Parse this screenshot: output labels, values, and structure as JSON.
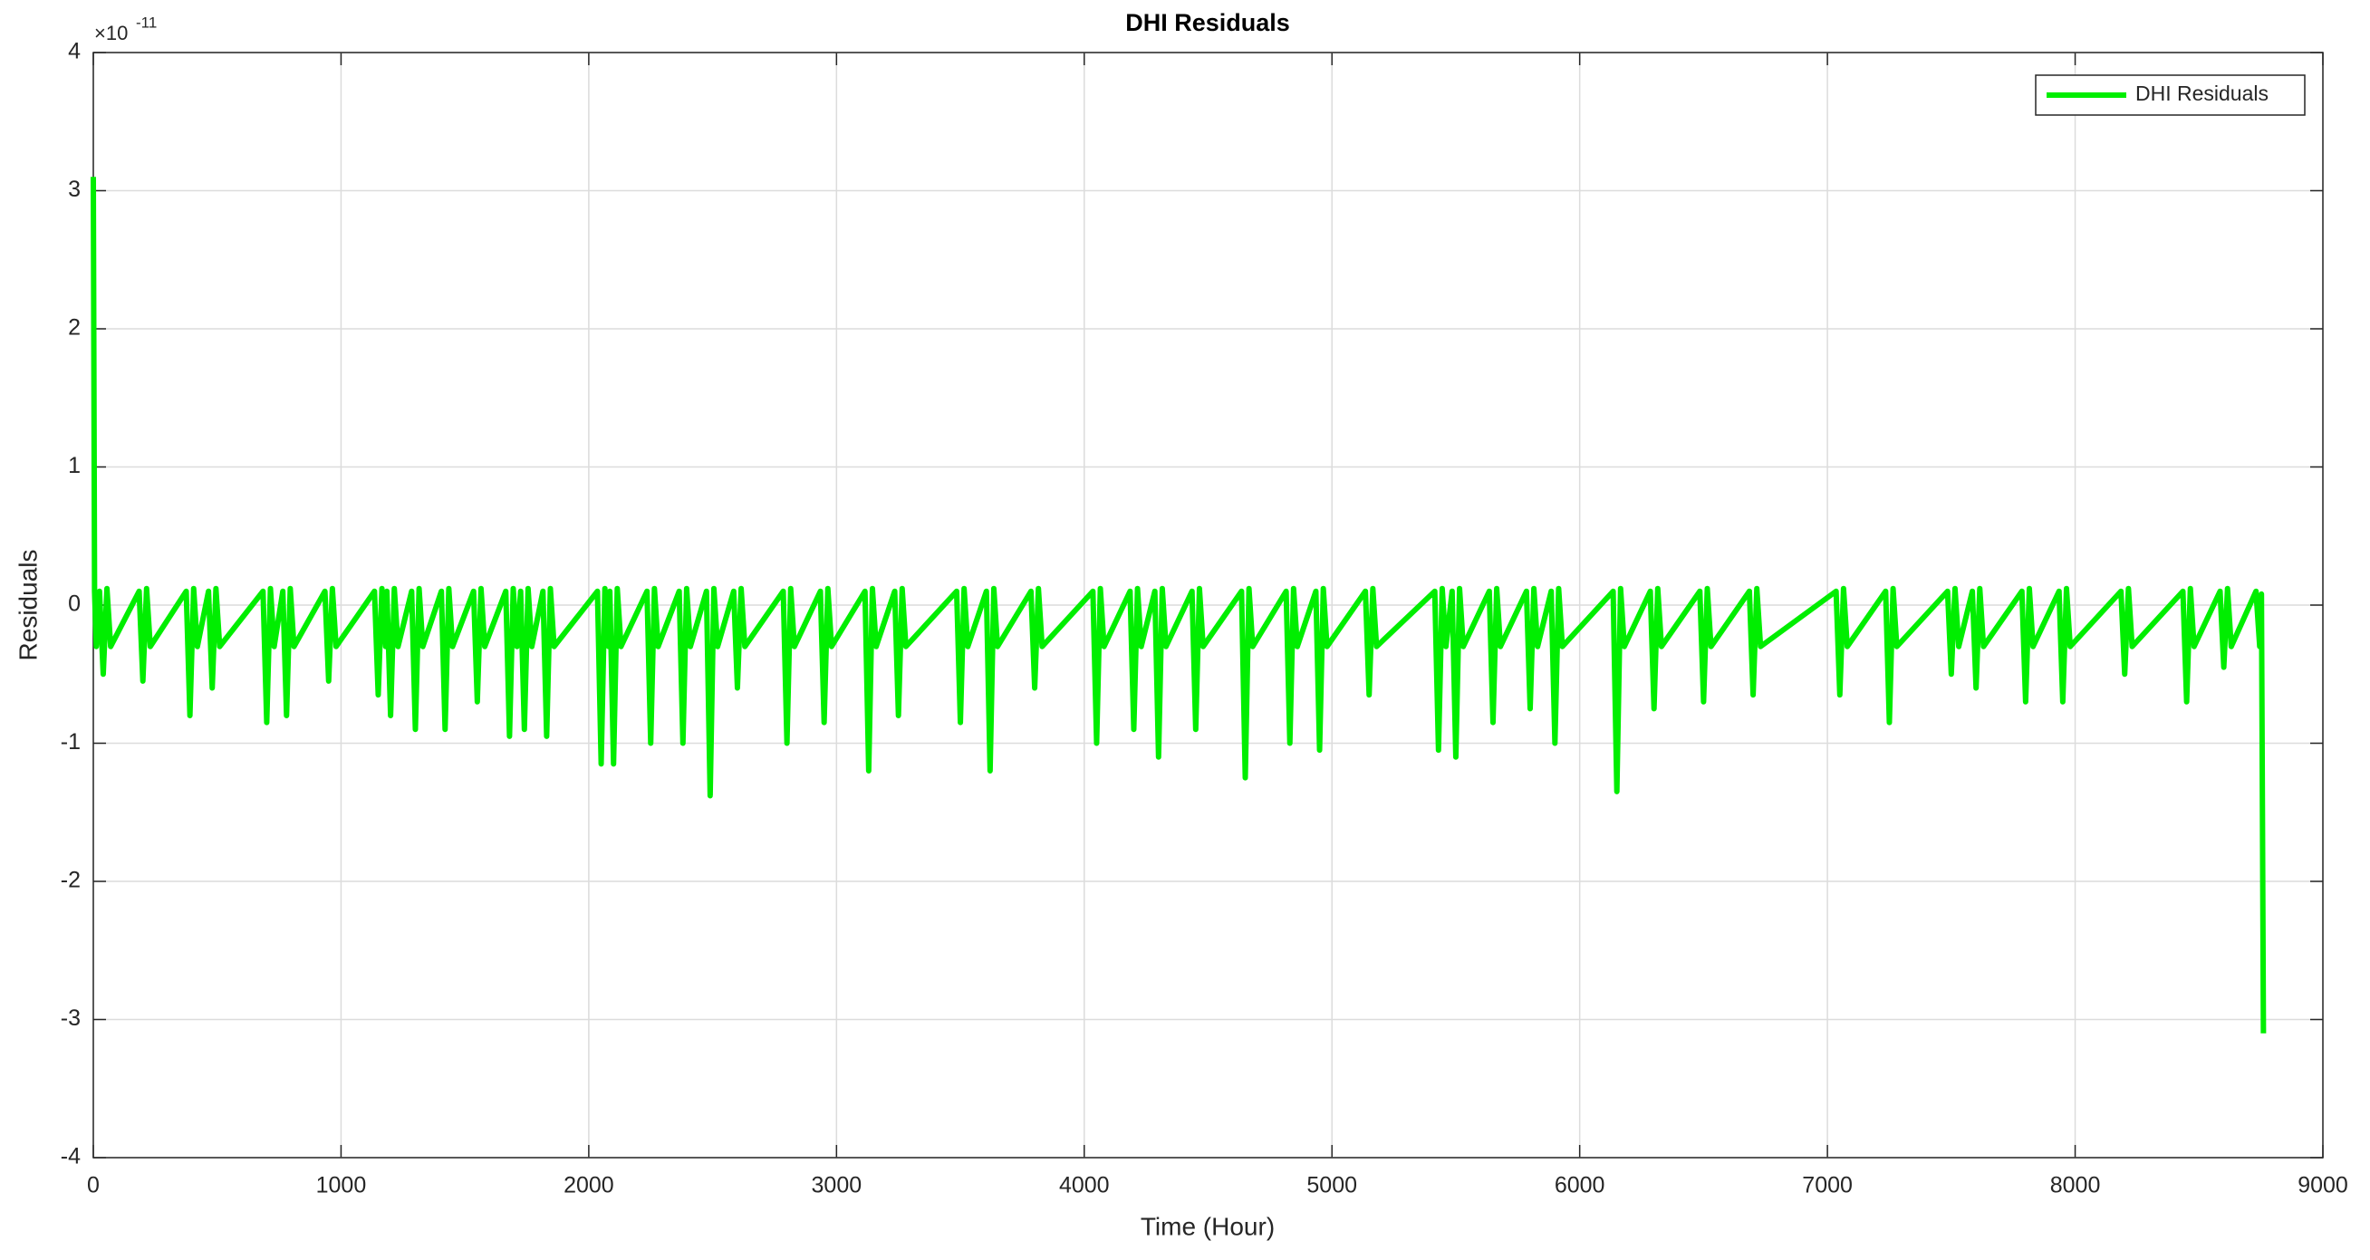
{
  "chart_data": {
    "type": "line",
    "title": "DHI Residuals",
    "xlabel": "Time (Hour)",
    "ylabel": "Residuals",
    "y_multiplier": {
      "base": "×10",
      "exponent": "-11"
    },
    "x": [
      0,
      5,
      12,
      25,
      40,
      55,
      70,
      185,
      200,
      215,
      230,
      375,
      390,
      405,
      420,
      465,
      480,
      495,
      510,
      685,
      700,
      715,
      730,
      765,
      780,
      795,
      810,
      935,
      950,
      965,
      980,
      1135,
      1150,
      1165,
      1180,
      1185,
      1200,
      1215,
      1230,
      1285,
      1300,
      1315,
      1330,
      1405,
      1420,
      1435,
      1450,
      1535,
      1550,
      1565,
      1580,
      1665,
      1680,
      1695,
      1710,
      1725,
      1740,
      1755,
      1770,
      1815,
      1830,
      1845,
      1860,
      2035,
      2050,
      2065,
      2080,
      2085,
      2100,
      2115,
      2130,
      2235,
      2250,
      2265,
      2280,
      2365,
      2380,
      2395,
      2410,
      2475,
      2490,
      2505,
      2520,
      2585,
      2600,
      2615,
      2630,
      2785,
      2800,
      2815,
      2830,
      2935,
      2950,
      2965,
      2980,
      3115,
      3130,
      3145,
      3160,
      3235,
      3250,
      3265,
      3280,
      3485,
      3500,
      3515,
      3530,
      3605,
      3620,
      3635,
      3650,
      3785,
      3800,
      3815,
      3830,
      4035,
      4050,
      4065,
      4080,
      4185,
      4200,
      4215,
      4230,
      4285,
      4300,
      4315,
      4330,
      4435,
      4450,
      4465,
      4480,
      4635,
      4650,
      4665,
      4680,
      4815,
      4830,
      4845,
      4860,
      4935,
      4950,
      4965,
      4980,
      5135,
      5150,
      5165,
      5180,
      5415,
      5430,
      5445,
      5460,
      5485,
      5500,
      5515,
      5530,
      5635,
      5650,
      5665,
      5680,
      5785,
      5800,
      5815,
      5830,
      5885,
      5900,
      5915,
      5930,
      6135,
      6150,
      6165,
      6180,
      6285,
      6300,
      6315,
      6330,
      6485,
      6500,
      6515,
      6530,
      6685,
      6700,
      6715,
      6730,
      7035,
      7050,
      7065,
      7080,
      7235,
      7250,
      7265,
      7280,
      7485,
      7500,
      7515,
      7530,
      7585,
      7600,
      7615,
      7630,
      7785,
      7800,
      7815,
      7830,
      7935,
      7950,
      7965,
      7980,
      8185,
      8200,
      8215,
      8230,
      8435,
      8450,
      8465,
      8480,
      8585,
      8600,
      8615,
      8630,
      8730,
      8745,
      8752,
      8760
    ],
    "series": [
      {
        "name": "DHI Residuals",
        "color": "#00ee00",
        "values": [
          3.1,
          0.1,
          -0.3,
          0.1,
          -0.5,
          0.12,
          -0.3,
          0.1,
          -0.55,
          0.12,
          -0.3,
          0.1,
          -0.8,
          0.12,
          -0.3,
          0.1,
          -0.6,
          0.12,
          -0.3,
          0.1,
          -0.85,
          0.12,
          -0.3,
          0.1,
          -0.8,
          0.12,
          -0.3,
          0.1,
          -0.55,
          0.12,
          -0.3,
          0.1,
          -0.65,
          0.12,
          -0.3,
          0.1,
          -0.8,
          0.12,
          -0.3,
          0.1,
          -0.9,
          0.12,
          -0.3,
          0.1,
          -0.9,
          0.12,
          -0.3,
          0.1,
          -0.7,
          0.12,
          -0.3,
          0.1,
          -0.95,
          0.12,
          -0.3,
          0.1,
          -0.9,
          0.12,
          -0.3,
          0.1,
          -0.95,
          0.12,
          -0.3,
          0.1,
          -1.15,
          0.12,
          -0.3,
          0.1,
          -1.15,
          0.12,
          -0.3,
          0.1,
          -1.0,
          0.12,
          -0.3,
          0.1,
          -1.0,
          0.12,
          -0.3,
          0.1,
          -1.38,
          0.12,
          -0.3,
          0.1,
          -0.6,
          0.12,
          -0.3,
          0.1,
          -1.0,
          0.12,
          -0.3,
          0.1,
          -0.85,
          0.12,
          -0.3,
          0.1,
          -1.2,
          0.12,
          -0.3,
          0.1,
          -0.8,
          0.12,
          -0.3,
          0.1,
          -0.85,
          0.12,
          -0.3,
          0.1,
          -1.2,
          0.12,
          -0.3,
          0.1,
          -0.6,
          0.12,
          -0.3,
          0.1,
          -1.0,
          0.12,
          -0.3,
          0.1,
          -0.9,
          0.12,
          -0.3,
          0.1,
          -1.1,
          0.12,
          -0.3,
          0.1,
          -0.9,
          0.12,
          -0.3,
          0.1,
          -1.25,
          0.12,
          -0.3,
          0.1,
          -1.0,
          0.12,
          -0.3,
          0.1,
          -1.05,
          0.12,
          -0.3,
          0.1,
          -0.65,
          0.12,
          -0.3,
          0.1,
          -1.05,
          0.12,
          -0.3,
          0.1,
          -1.1,
          0.12,
          -0.3,
          0.1,
          -0.85,
          0.12,
          -0.3,
          0.1,
          -0.75,
          0.12,
          -0.3,
          0.1,
          -1.0,
          0.12,
          -0.3,
          0.1,
          -1.35,
          0.12,
          -0.3,
          0.1,
          -0.75,
          0.12,
          -0.3,
          0.1,
          -0.7,
          0.12,
          -0.3,
          0.1,
          -0.65,
          0.12,
          -0.3,
          0.1,
          -0.65,
          0.12,
          -0.3,
          0.1,
          -0.85,
          0.12,
          -0.3,
          0.1,
          -0.5,
          0.12,
          -0.3,
          0.1,
          -0.6,
          0.12,
          -0.3,
          0.1,
          -0.7,
          0.12,
          -0.3,
          0.1,
          -0.7,
          0.12,
          -0.3,
          0.1,
          -0.5,
          0.12,
          -0.3,
          0.1,
          -0.7,
          0.12,
          -0.3,
          0.1,
          -0.45,
          0.12,
          -0.3,
          0.1,
          -0.3,
          0.08,
          -3.1
        ]
      }
    ],
    "xlim": [
      0,
      9000
    ],
    "xticks": [
      0,
      1000,
      2000,
      3000,
      4000,
      5000,
      6000,
      7000,
      8000,
      9000
    ],
    "ylim": [
      -4,
      4
    ],
    "yticks": [
      -4,
      -3,
      -2,
      -1,
      0,
      1,
      2,
      3,
      4
    ],
    "grid": true,
    "legend": "upper right"
  }
}
